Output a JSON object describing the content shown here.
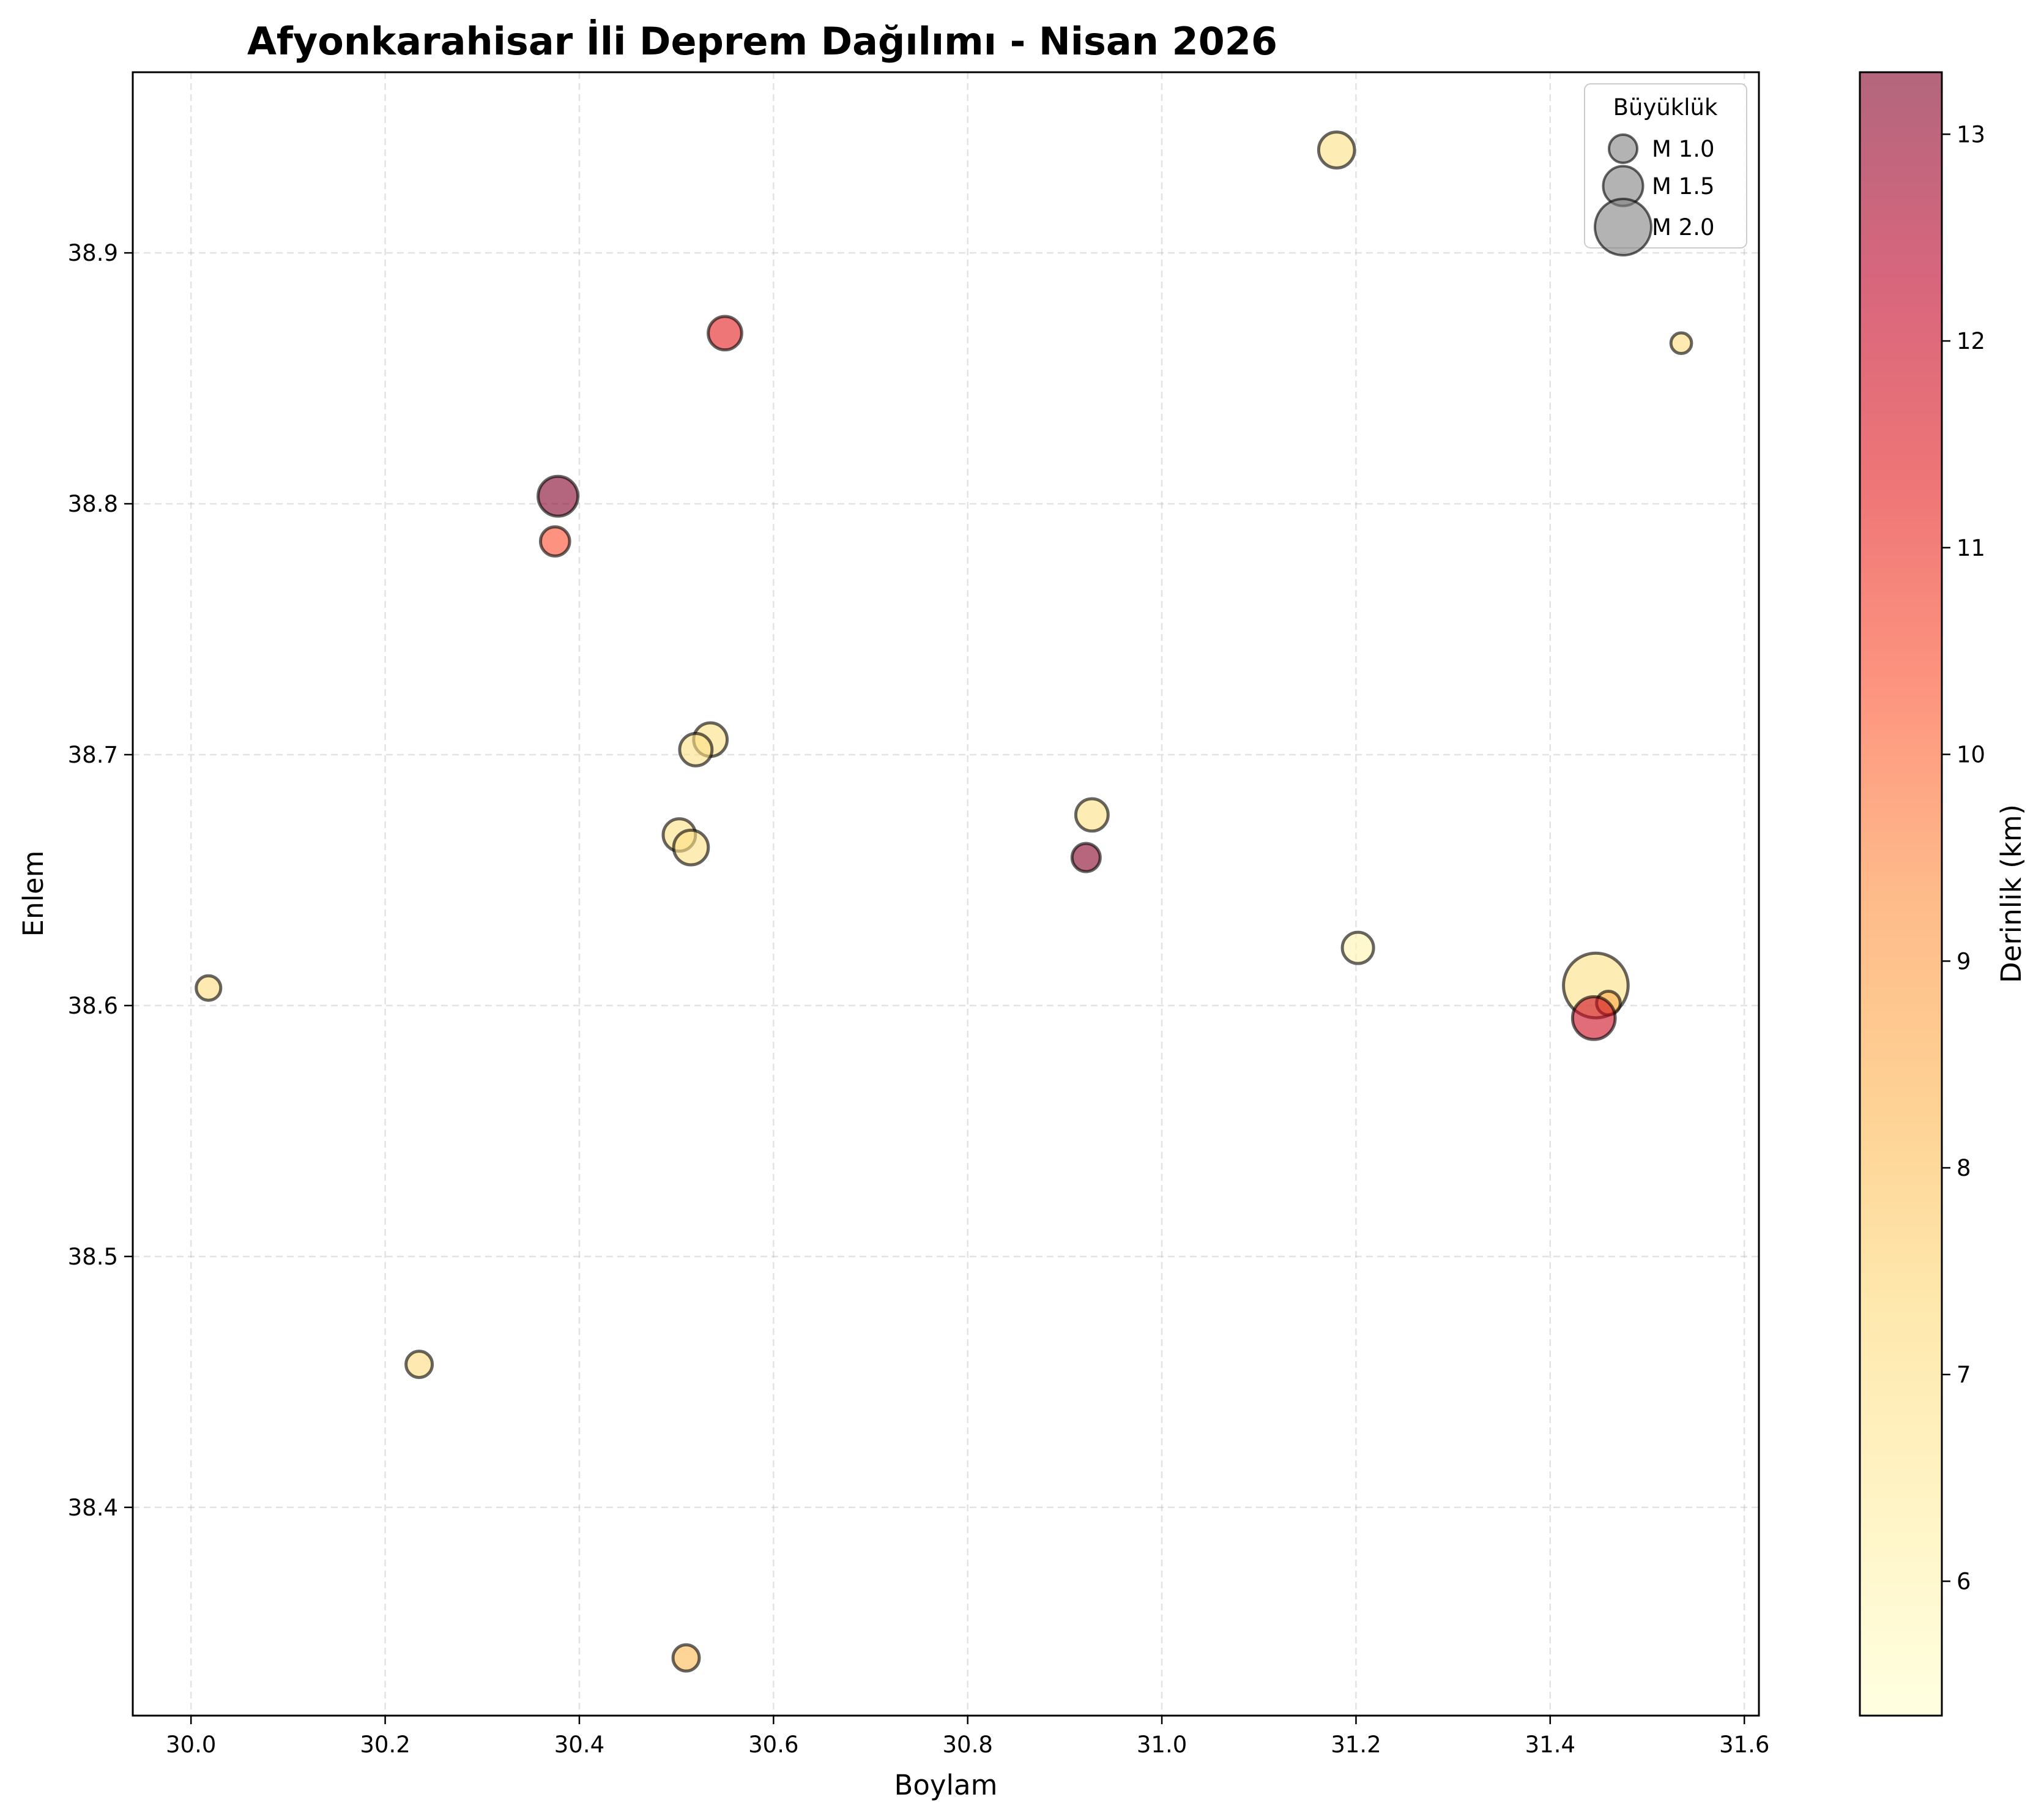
{
  "chart_data": {
    "type": "scatter",
    "title": "Afyonkarahisar İli Deprem Dağılımı - Nisan 2026",
    "xlabel": "Boylam",
    "ylabel": "Enlem",
    "xlim": [
      29.94,
      31.615
    ],
    "ylim": [
      38.317,
      38.972
    ],
    "xticks": [
      "30.0",
      "30.2",
      "30.4",
      "30.6",
      "30.8",
      "31.0",
      "31.2",
      "31.4",
      "31.6"
    ],
    "yticks": [
      "38.4",
      "38.5",
      "38.6",
      "38.7",
      "38.8",
      "38.9"
    ],
    "grid": true,
    "colormap": "YlOrRd",
    "colorbar": {
      "label": "Derinlik (km)",
      "range": [
        5.35,
        13.3
      ],
      "ticks": [
        "6",
        "7",
        "8",
        "9",
        "10",
        "11",
        "12",
        "13"
      ]
    },
    "legend": {
      "title": "Büyüklük",
      "placement": "top-right",
      "entries": [
        {
          "label": "M 1.0",
          "magnitude": 1.0
        },
        {
          "label": "M 1.5",
          "magnitude": 1.5
        },
        {
          "label": "M 2.0",
          "magnitude": 2.0
        }
      ]
    },
    "points": [
      {
        "lon": 31.18,
        "lat": 38.941,
        "mag": 1.35,
        "depth": 7.0
      },
      {
        "lon": 30.55,
        "lat": 38.868,
        "mag": 1.25,
        "depth": 11.3
      },
      {
        "lon": 31.535,
        "lat": 38.864,
        "mag": 0.55,
        "depth": 7.2
      },
      {
        "lon": 30.378,
        "lat": 38.803,
        "mag": 1.5,
        "depth": 13.3
      },
      {
        "lon": 30.375,
        "lat": 38.785,
        "mag": 1.05,
        "depth": 10.4
      },
      {
        "lon": 30.535,
        "lat": 38.706,
        "mag": 1.25,
        "depth": 7.0
      },
      {
        "lon": 30.52,
        "lat": 38.702,
        "mag": 1.2,
        "depth": 7.0
      },
      {
        "lon": 30.928,
        "lat": 38.676,
        "mag": 1.2,
        "depth": 7.0
      },
      {
        "lon": 30.503,
        "lat": 38.668,
        "mag": 1.2,
        "depth": 7.0
      },
      {
        "lon": 30.515,
        "lat": 38.663,
        "mag": 1.3,
        "depth": 7.0
      },
      {
        "lon": 30.922,
        "lat": 38.659,
        "mag": 1.0,
        "depth": 13.2
      },
      {
        "lon": 31.202,
        "lat": 38.623,
        "mag": 1.15,
        "depth": 6.0
      },
      {
        "lon": 31.447,
        "lat": 38.608,
        "mag": 2.2,
        "depth": 7.0
      },
      {
        "lon": 31.46,
        "lat": 38.601,
        "mag": 0.75,
        "depth": 8.6
      },
      {
        "lon": 31.445,
        "lat": 38.595,
        "mag": 1.6,
        "depth": 11.9
      },
      {
        "lon": 30.018,
        "lat": 38.607,
        "mag": 0.8,
        "depth": 7.2
      },
      {
        "lon": 30.235,
        "lat": 38.457,
        "mag": 0.9,
        "depth": 7.2
      },
      {
        "lon": 30.51,
        "lat": 38.34,
        "mag": 0.9,
        "depth": 8.2
      }
    ]
  }
}
